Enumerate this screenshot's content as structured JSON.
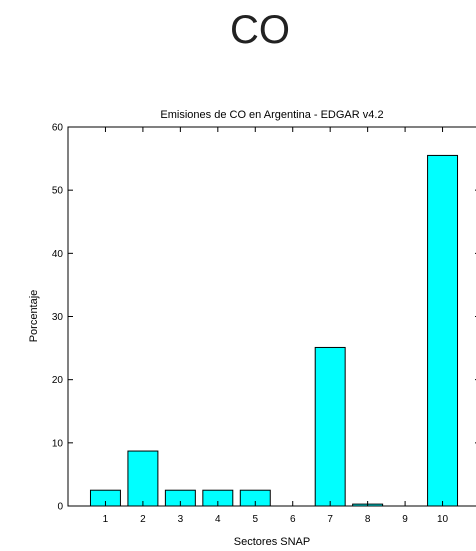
{
  "heading": "CO",
  "chart_data": {
    "type": "bar",
    "title": "Emisiones de CO en Argentina - EDGAR v4.2",
    "xlabel": "Sectores SNAP",
    "ylabel": "Porcentaje",
    "categories": [
      "1",
      "2",
      "3",
      "4",
      "5",
      "6",
      "7",
      "8",
      "9",
      "10"
    ],
    "values": [
      2.5,
      8.7,
      2.5,
      2.5,
      2.5,
      0,
      25.1,
      0.3,
      0,
      55.5
    ],
    "ylim": [
      0,
      60
    ],
    "xlim": [
      0,
      11
    ],
    "yticks": [
      0,
      10,
      20,
      30,
      40,
      50,
      60
    ],
    "bar_color": "#00ffff",
    "edge_color": "#000000",
    "grid": false
  }
}
